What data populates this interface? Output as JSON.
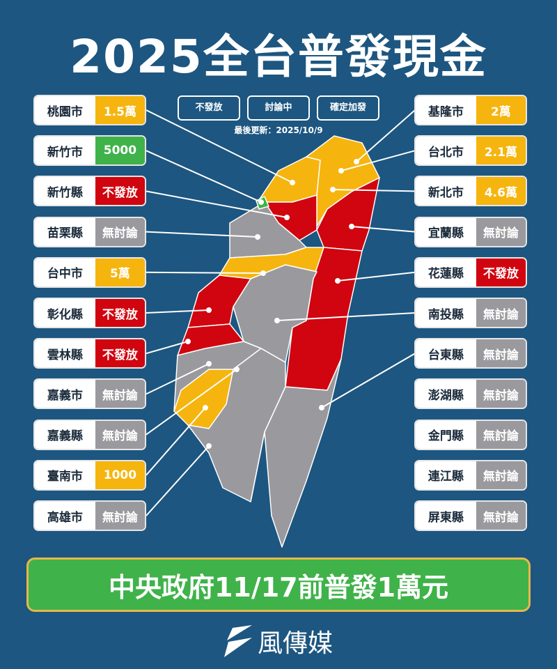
{
  "title": "2025全台普發現金",
  "legend": [
    {
      "label": "不發放",
      "color": "#d0050f"
    },
    {
      "label": "討論中",
      "color": "#f6b40e"
    },
    {
      "label": "確定加發",
      "color": "#3fb24a"
    }
  ],
  "updated": "最後更新：2025/10/9",
  "status_colors": {
    "no": "#d0050f",
    "discussing": "#f6b40e",
    "confirmed": "#3fb24a",
    "none": "#9a9a9e"
  },
  "left": [
    {
      "name": "桃園市",
      "value": "1.5萬",
      "status": "discussing"
    },
    {
      "name": "新竹市",
      "value": "5000",
      "status": "confirmed"
    },
    {
      "name": "新竹縣",
      "value": "不發放",
      "status": "no"
    },
    {
      "name": "苗栗縣",
      "value": "無討論",
      "status": "none"
    },
    {
      "name": "台中市",
      "value": "5萬",
      "status": "discussing"
    },
    {
      "name": "彰化縣",
      "value": "不發放",
      "status": "no"
    },
    {
      "name": "雲林縣",
      "value": "不發放",
      "status": "no"
    },
    {
      "name": "嘉義市",
      "value": "無討論",
      "status": "none"
    },
    {
      "name": "嘉義縣",
      "value": "無討論",
      "status": "none"
    },
    {
      "name": "臺南市",
      "value": "1000",
      "status": "discussing"
    },
    {
      "name": "高雄市",
      "value": "無討論",
      "status": "none"
    }
  ],
  "right": [
    {
      "name": "基隆市",
      "value": "2萬",
      "status": "discussing"
    },
    {
      "name": "台北市",
      "value": "2.1萬",
      "status": "discussing"
    },
    {
      "name": "新北市",
      "value": "4.6萬",
      "status": "discussing"
    },
    {
      "name": "宜蘭縣",
      "value": "無討論",
      "status": "none"
    },
    {
      "name": "花蓮縣",
      "value": "不發放",
      "status": "no"
    },
    {
      "name": "南投縣",
      "value": "無討論",
      "status": "none"
    },
    {
      "name": "台東縣",
      "value": "無討論",
      "status": "none"
    },
    {
      "name": "澎湖縣",
      "value": "無討論",
      "status": "none"
    },
    {
      "name": "金門縣",
      "value": "無討論",
      "status": "none"
    },
    {
      "name": "連江縣",
      "value": "無討論",
      "status": "none"
    },
    {
      "name": "屏東縣",
      "value": "無討論",
      "status": "none"
    }
  ],
  "banner": "中央政府11/17前普發1萬元",
  "logo": "風傳媒"
}
